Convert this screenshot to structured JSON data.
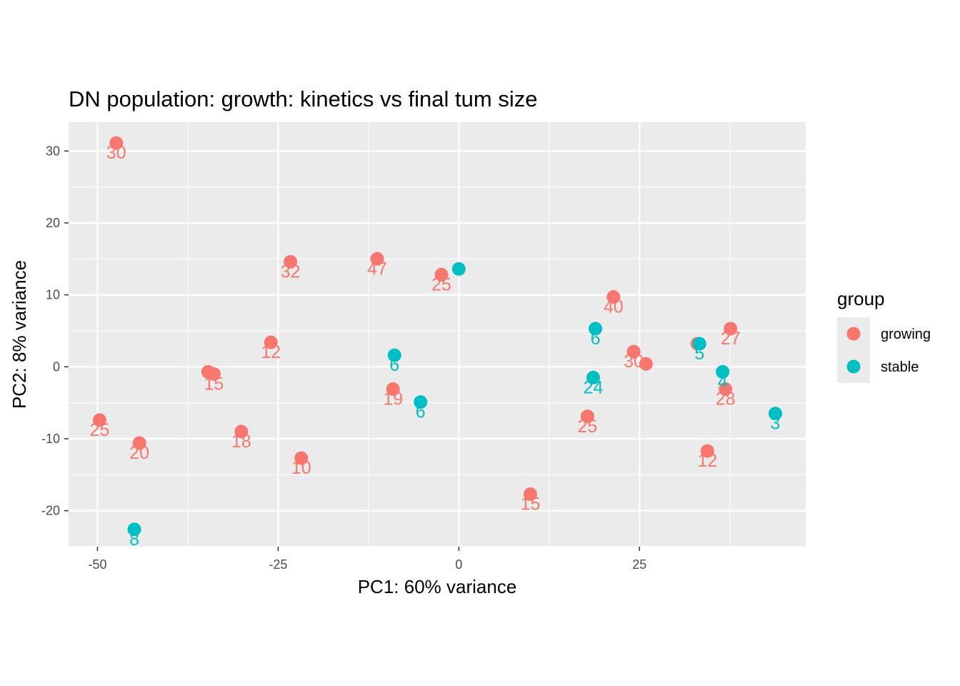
{
  "chart_data": {
    "type": "scatter",
    "title": "DN population: growth: kinetics vs final tum size",
    "xlabel": "PC1: 60% variance",
    "ylabel": "PC2: 8% variance",
    "xlim": [
      -54,
      48
    ],
    "ylim": [
      -25,
      34
    ],
    "x_ticks": [
      -50,
      -25,
      0,
      25
    ],
    "y_ticks": [
      -20,
      -10,
      0,
      10,
      20,
      30
    ],
    "x_tick_labels": [
      "-50",
      "-25",
      "0",
      "25"
    ],
    "y_tick_labels": [
      "-20",
      "-10",
      "0",
      "10",
      "20",
      "30"
    ],
    "grid": true,
    "legend": {
      "title": "group",
      "position": "right",
      "entries": [
        {
          "name": "growing",
          "color": "#F8766D"
        },
        {
          "name": "stable",
          "color": "#00BFC4"
        }
      ]
    },
    "series": [
      {
        "name": "growing",
        "color": "#F8766D",
        "points": [
          {
            "x": -47.4,
            "y": 31.1,
            "label": "30"
          },
          {
            "x": -23.3,
            "y": 14.6,
            "label": "32"
          },
          {
            "x": -11.3,
            "y": 15.0,
            "label": "47"
          },
          {
            "x": -2.4,
            "y": 12.8,
            "label": "25"
          },
          {
            "x": 21.4,
            "y": 9.7,
            "label": "40"
          },
          {
            "x": 37.6,
            "y": 5.3,
            "label": "27"
          },
          {
            "x": -26.0,
            "y": 3.4,
            "label": "12"
          },
          {
            "x": 24.2,
            "y": 2.1,
            "label": "30"
          },
          {
            "x": 25.9,
            "y": 0.4,
            "label": ""
          },
          {
            "x": 33.0,
            "y": 3.2,
            "label": ""
          },
          {
            "x": -34.7,
            "y": -0.7,
            "label": ""
          },
          {
            "x": -33.9,
            "y": -1.0,
            "label": "15"
          },
          {
            "x": -9.1,
            "y": -3.1,
            "label": "19"
          },
          {
            "x": 36.9,
            "y": -3.1,
            "label": "28"
          },
          {
            "x": -49.7,
            "y": -7.4,
            "label": "25"
          },
          {
            "x": 17.8,
            "y": -6.9,
            "label": "25"
          },
          {
            "x": -44.2,
            "y": -10.6,
            "label": "20"
          },
          {
            "x": -30.1,
            "y": -9.0,
            "label": "18"
          },
          {
            "x": -21.8,
            "y": -12.7,
            "label": "10"
          },
          {
            "x": 34.4,
            "y": -11.7,
            "label": "12"
          },
          {
            "x": 9.9,
            "y": -17.7,
            "label": "15"
          }
        ]
      },
      {
        "name": "stable",
        "color": "#00BFC4",
        "points": [
          {
            "x": 0.0,
            "y": 13.6,
            "label": ""
          },
          {
            "x": 18.9,
            "y": 5.3,
            "label": "6"
          },
          {
            "x": 33.3,
            "y": 3.2,
            "label": "5"
          },
          {
            "x": -8.9,
            "y": 1.6,
            "label": "6"
          },
          {
            "x": 36.5,
            "y": -0.7,
            "label": "4"
          },
          {
            "x": 18.6,
            "y": -1.5,
            "label": "24"
          },
          {
            "x": -5.3,
            "y": -4.9,
            "label": "6"
          },
          {
            "x": 43.8,
            "y": -6.5,
            "label": "3"
          },
          {
            "x": -44.9,
            "y": -22.6,
            "label": "8"
          }
        ]
      }
    ]
  }
}
